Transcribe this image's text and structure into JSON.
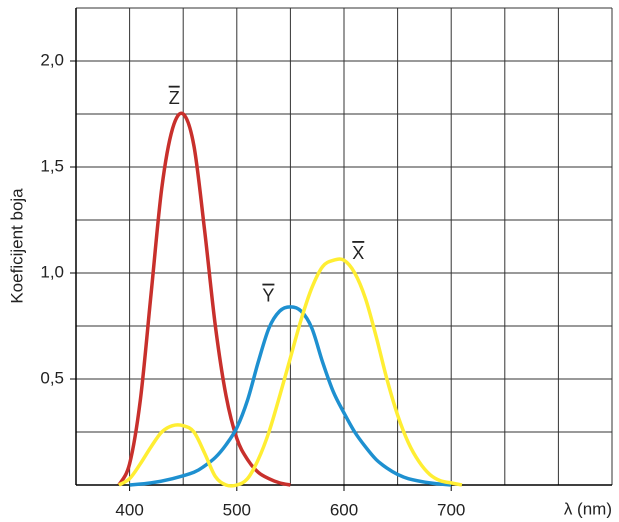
{
  "chart_data": {
    "type": "line",
    "ylabel": "Koeficijent boja",
    "xlabel": "λ (nm)",
    "xlim": [
      350,
      850
    ],
    "ylim": [
      0,
      2.25
    ],
    "xticks": [
      400,
      500,
      600,
      700
    ],
    "yticks": [
      {
        "value": 0.5,
        "label": "0,5"
      },
      {
        "value": 1.0,
        "label": "1,0"
      },
      {
        "value": 1.5,
        "label": "1,5"
      },
      {
        "value": 2.0,
        "label": "2,0"
      }
    ],
    "xgrid": [
      350,
      400,
      450,
      500,
      550,
      600,
      650,
      700,
      750,
      800,
      850
    ],
    "ygrid": [
      0.25,
      0.5,
      0.75,
      1.0,
      1.25,
      1.5,
      1.75,
      2.0,
      2.25
    ],
    "grid": true,
    "series": [
      {
        "name": "Z",
        "color": "#c8302c",
        "x": [
          390,
          400,
          410,
          420,
          430,
          440,
          450,
          460,
          470,
          480,
          490,
          500,
          510,
          520,
          530,
          540,
          550
        ],
        "values": [
          0,
          0.1,
          0.4,
          0.9,
          1.4,
          1.68,
          1.75,
          1.6,
          1.2,
          0.75,
          0.42,
          0.22,
          0.12,
          0.06,
          0.03,
          0.01,
          0
        ]
      },
      {
        "name": "Y",
        "color": "#1e90d0",
        "x": [
          400,
          420,
          440,
          460,
          470,
          480,
          490,
          500,
          510,
          520,
          530,
          540,
          550,
          560,
          570,
          580,
          590,
          600,
          610,
          620,
          630,
          640,
          650,
          660,
          680,
          700
        ],
        "values": [
          0,
          0.01,
          0.03,
          0.06,
          0.09,
          0.13,
          0.19,
          0.27,
          0.4,
          0.58,
          0.74,
          0.82,
          0.84,
          0.82,
          0.74,
          0.58,
          0.44,
          0.34,
          0.25,
          0.18,
          0.12,
          0.08,
          0.05,
          0.03,
          0.01,
          0
        ]
      },
      {
        "name": "X",
        "color": "#ffee33",
        "x": [
          390,
          400,
          410,
          420,
          430,
          440,
          450,
          460,
          470,
          480,
          490,
          500,
          510,
          520,
          530,
          540,
          550,
          560,
          570,
          580,
          590,
          600,
          610,
          620,
          630,
          640,
          650,
          660,
          670,
          680,
          690,
          700,
          710
        ],
        "values": [
          0,
          0.03,
          0.1,
          0.18,
          0.25,
          0.28,
          0.28,
          0.25,
          0.15,
          0.04,
          0,
          0,
          0.03,
          0.12,
          0.25,
          0.42,
          0.6,
          0.78,
          0.93,
          1.03,
          1.06,
          1.06,
          1.0,
          0.88,
          0.7,
          0.5,
          0.33,
          0.2,
          0.11,
          0.05,
          0.02,
          0.01,
          0
        ]
      }
    ]
  }
}
